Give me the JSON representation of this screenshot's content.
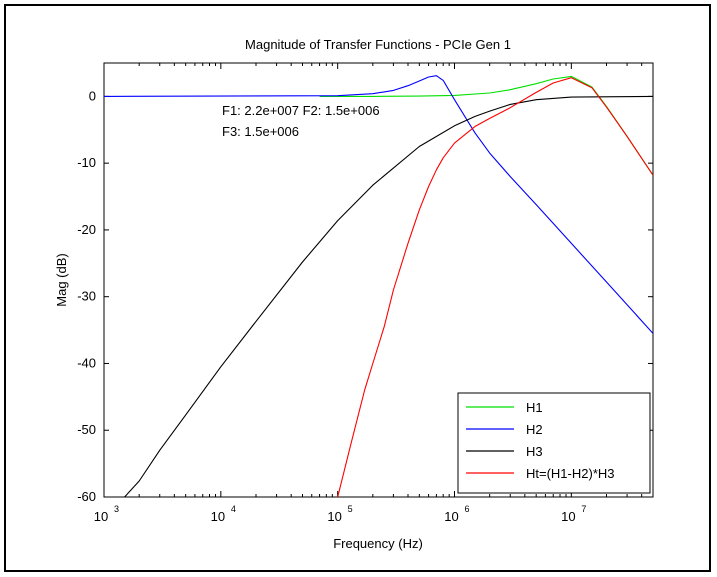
{
  "chart_data": {
    "type": "line",
    "title": "Magnitude of Transfer Functions - PCIe Gen 1",
    "xlabel": "Frequency (Hz)",
    "ylabel": "Mag (dB)",
    "xscale": "log",
    "xlim": [
      1000,
      50000000
    ],
    "ylim": [
      -60,
      5
    ],
    "xtick_exponents": [
      3,
      4,
      5,
      6,
      7
    ],
    "xtick_base": "10",
    "yticks": [
      0,
      -10,
      -20,
      -30,
      -40,
      -50,
      -60
    ],
    "grid": false,
    "legend_position": "bottom-right",
    "annotation": {
      "line1": "F1: 2.2e+007 F2: 1.5e+006",
      "line2": "F3: 1.5e+006"
    },
    "series": [
      {
        "name": "H1",
        "color": "#00e000",
        "x": [
          70000,
          200000,
          500000,
          1000000,
          2000000,
          3000000,
          5000000,
          7000000,
          10000000,
          15000000,
          20000000,
          30000000,
          50000000
        ],
        "y": [
          0,
          0,
          0.05,
          0.15,
          0.5,
          1.0,
          1.9,
          2.6,
          3.0,
          1.4,
          -1.5,
          -6.0,
          -11.8
        ]
      },
      {
        "name": "H2",
        "color": "#0000ff",
        "x": [
          1000,
          100000,
          200000,
          300000,
          400000,
          500000,
          600000,
          700000,
          800000,
          1000000,
          1500000,
          2000000,
          3000000,
          5000000,
          10000000,
          20000000,
          50000000
        ],
        "y": [
          0,
          0.1,
          0.4,
          0.9,
          1.6,
          2.3,
          2.9,
          3.1,
          2.4,
          -0.5,
          -5.5,
          -8.5,
          -12.0,
          -16.2,
          -22.0,
          -27.8,
          -35.5
        ]
      },
      {
        "name": "H3",
        "color": "#000000",
        "x": [
          1500,
          2000,
          3000,
          5000,
          10000,
          20000,
          50000,
          100000,
          200000,
          500000,
          1000000,
          1500000,
          2000000,
          3000000,
          5000000,
          10000000,
          50000000
        ],
        "y": [
          -60,
          -57.6,
          -53.0,
          -47.7,
          -40.5,
          -33.7,
          -24.8,
          -18.6,
          -13.3,
          -7.5,
          -4.4,
          -3.0,
          -2.2,
          -1.2,
          -0.5,
          -0.1,
          0
        ]
      },
      {
        "name": "Ht=(H1-H2)*H3",
        "color": "#ff0000",
        "x": [
          100000,
          130000,
          170000,
          200000,
          250000,
          300000,
          400000,
          500000,
          600000,
          700000,
          800000,
          1000000,
          1500000,
          2000000,
          3000000,
          5000000,
          7000000,
          10000000,
          15000000,
          20000000,
          30000000,
          50000000
        ],
        "y": [
          -60,
          -52.0,
          -44.0,
          -40.0,
          -34.5,
          -29.0,
          -22.0,
          -17.0,
          -13.5,
          -11.0,
          -9.2,
          -7.0,
          -4.5,
          -3.3,
          -1.7,
          0.6,
          2.0,
          2.8,
          1.3,
          -1.6,
          -6.0,
          -11.8
        ]
      }
    ]
  }
}
